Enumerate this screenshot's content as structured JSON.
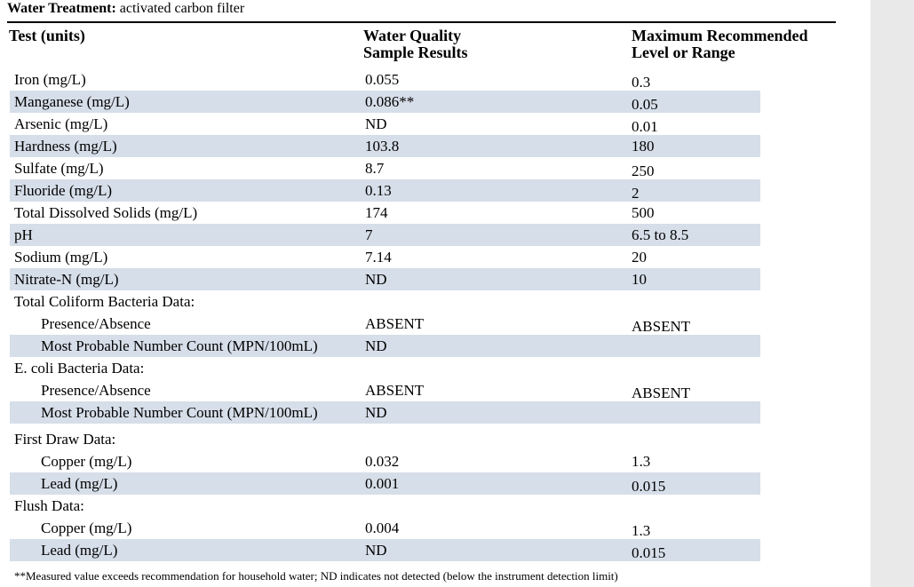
{
  "header": {
    "treatment_label": "Water Treatment:",
    "treatment_value": "activated carbon filter"
  },
  "columns": {
    "test": "Test (units)",
    "results_line1": "Water Quality",
    "results_line2": "Sample Results",
    "max_line1": "Maximum Recommended",
    "max_line2": "Level or Range"
  },
  "rows": [
    {
      "test": "Iron (mg/L)",
      "result": "0.055",
      "max": "0.3"
    },
    {
      "test": "Manganese (mg/L)",
      "result": "0.086**",
      "max": "0.05"
    },
    {
      "test": "Arsenic (mg/L)",
      "result": "ND",
      "max": "0.01"
    },
    {
      "test": "Hardness (mg/L)",
      "result": "103.8",
      "max": "180"
    },
    {
      "test": "Sulfate (mg/L)",
      "result": "8.7",
      "max": "250"
    },
    {
      "test": "Fluoride (mg/L)",
      "result": "0.13",
      "max": "2"
    },
    {
      "test": "Total Dissolved Solids (mg/L)",
      "result": "174",
      "max": "500"
    },
    {
      "test": "pH",
      "result": "7",
      "max": "6.5 to 8.5"
    },
    {
      "test": "Sodium (mg/L)",
      "result": "7.14",
      "max": "20"
    },
    {
      "test": "Nitrate-N (mg/L)",
      "result": "ND",
      "max": "10"
    },
    {
      "test": "Total Coliform Bacteria Data:",
      "result": "",
      "max": ""
    },
    {
      "test": "Presence/Absence",
      "result": "ABSENT",
      "max": "ABSENT"
    },
    {
      "test": "Most Probable Number Count (MPN/100mL)",
      "result": "ND",
      "max": ""
    },
    {
      "test": "E. coli Bacteria Data:",
      "result": "",
      "max": ""
    },
    {
      "test": "Presence/Absence",
      "result": "ABSENT",
      "max": "ABSENT"
    },
    {
      "test": "Most Probable Number Count (MPN/100mL)",
      "result": "ND",
      "max": ""
    },
    {
      "test": "First Draw Data:",
      "result": "",
      "max": ""
    },
    {
      "test": "Copper (mg/L)",
      "result": "0.032",
      "max": "1.3"
    },
    {
      "test": "Lead (mg/L)",
      "result": "0.001",
      "max": "0.015"
    },
    {
      "test": "Flush Data:",
      "result": "",
      "max": ""
    },
    {
      "test": "Copper (mg/L)",
      "result": "0.004",
      "max": "1.3"
    },
    {
      "test": "Lead (mg/L)",
      "result": "ND",
      "max": "0.015"
    }
  ],
  "footnote": "**Measured value exceeds recommendation for household water;  ND indicates not detected (below the instrument detection limit)"
}
